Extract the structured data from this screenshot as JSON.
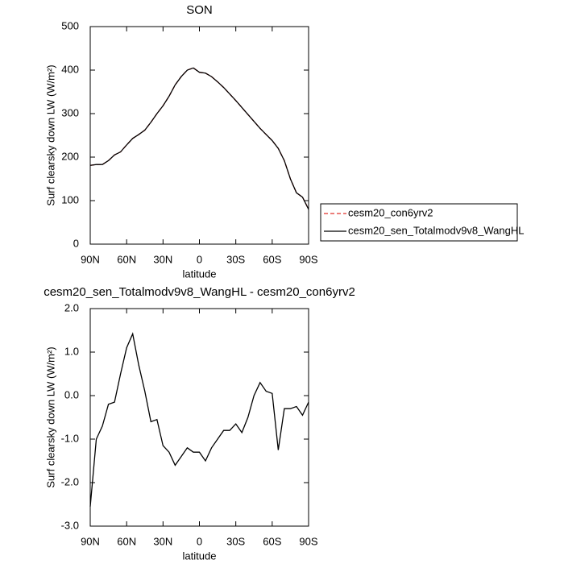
{
  "chart_data": [
    {
      "type": "line",
      "title": "SON",
      "xlabel": "latitude",
      "ylabel": "Surf clearsky down LW (W/m²)",
      "x": [
        90,
        85,
        80,
        75,
        70,
        65,
        60,
        55,
        50,
        45,
        40,
        35,
        30,
        25,
        20,
        15,
        10,
        5,
        0,
        -5,
        -10,
        -15,
        -20,
        -25,
        -30,
        -35,
        -40,
        -45,
        -50,
        -55,
        -60,
        -65,
        -70,
        -75,
        -80,
        -85,
        -90
      ],
      "series": [
        {
          "name": "cesm20_con6yrv2",
          "color": "#e0302a",
          "dash": true,
          "values": [
            181,
            183,
            183,
            192,
            205,
            212,
            228,
            243,
            252,
            262,
            280,
            300,
            318,
            340,
            366,
            385,
            400,
            405,
            395,
            393,
            385,
            373,
            360,
            345,
            330,
            314,
            298,
            282,
            266,
            252,
            238,
            220,
            192,
            150,
            118,
            108,
            80
          ]
        },
        {
          "name": "cesm20_sen_Totalmodv9v8_WangHL",
          "color": "#000000",
          "dash": false,
          "values": [
            181,
            183,
            183,
            192,
            205,
            212,
            228,
            243,
            252,
            262,
            280,
            300,
            318,
            340,
            366,
            385,
            400,
            405,
            395,
            393,
            385,
            373,
            360,
            345,
            330,
            314,
            298,
            282,
            266,
            252,
            238,
            220,
            192,
            150,
            118,
            108,
            80
          ]
        }
      ],
      "xlim": [
        90,
        -90
      ],
      "xticks": [
        {
          "value": 90,
          "label": "90N"
        },
        {
          "value": 60,
          "label": "60N"
        },
        {
          "value": 30,
          "label": "30N"
        },
        0,
        {
          "value": -30,
          "label": "30S"
        },
        {
          "value": -60,
          "label": "60S"
        },
        {
          "value": -90,
          "label": "90S"
        }
      ],
      "ylim": [
        0,
        500
      ],
      "yticks": [
        0,
        100,
        200,
        300,
        400,
        500
      ],
      "legend": "right"
    },
    {
      "type": "line",
      "title": "cesm20_sen_Totalmodv9v8_WangHL - cesm20_con6yrv2",
      "xlabel": "latitude",
      "ylabel": "Surf clearsky down LW (W/m²)",
      "x": [
        90,
        85,
        80,
        75,
        70,
        65,
        60,
        55,
        50,
        45,
        40,
        35,
        30,
        25,
        20,
        15,
        10,
        5,
        0,
        -5,
        -10,
        -15,
        -20,
        -25,
        -30,
        -35,
        -40,
        -45,
        -50,
        -55,
        -60,
        -65,
        -70,
        -75,
        -80,
        -85,
        -90
      ],
      "series": [
        {
          "color": "#000000",
          "dash": false,
          "values": [
            -2.55,
            -1.0,
            -0.7,
            -0.2,
            -0.15,
            0.5,
            1.1,
            1.42,
            0.7,
            0.1,
            -0.6,
            -0.55,
            -1.15,
            -1.3,
            -1.6,
            -1.4,
            -1.2,
            -1.3,
            -1.3,
            -1.5,
            -1.2,
            -1.0,
            -0.8,
            -0.8,
            -0.65,
            -0.85,
            -0.5,
            0.0,
            0.3,
            0.1,
            0.05,
            -1.25,
            -0.3,
            -0.3,
            -0.25,
            -0.45,
            -0.15
          ]
        }
      ],
      "xlim": [
        90,
        -90
      ],
      "xticks": [
        {
          "value": 90,
          "label": "90N"
        },
        {
          "value": 60,
          "label": "60N"
        },
        {
          "value": 30,
          "label": "30N"
        },
        0,
        {
          "value": -30,
          "label": "30S"
        },
        {
          "value": -60,
          "label": "60S"
        },
        {
          "value": -90,
          "label": "90S"
        }
      ],
      "ylim": [
        -3,
        2
      ],
      "yticks": [
        {
          "value": -3,
          "label": "-3.0"
        },
        {
          "value": -2,
          "label": "-2.0"
        },
        {
          "value": -1,
          "label": "-1.0"
        },
        {
          "value": 0,
          "label": "0.0"
        },
        {
          "value": 1,
          "label": "1.0"
        },
        {
          "value": 2,
          "label": "2.0"
        }
      ]
    }
  ]
}
